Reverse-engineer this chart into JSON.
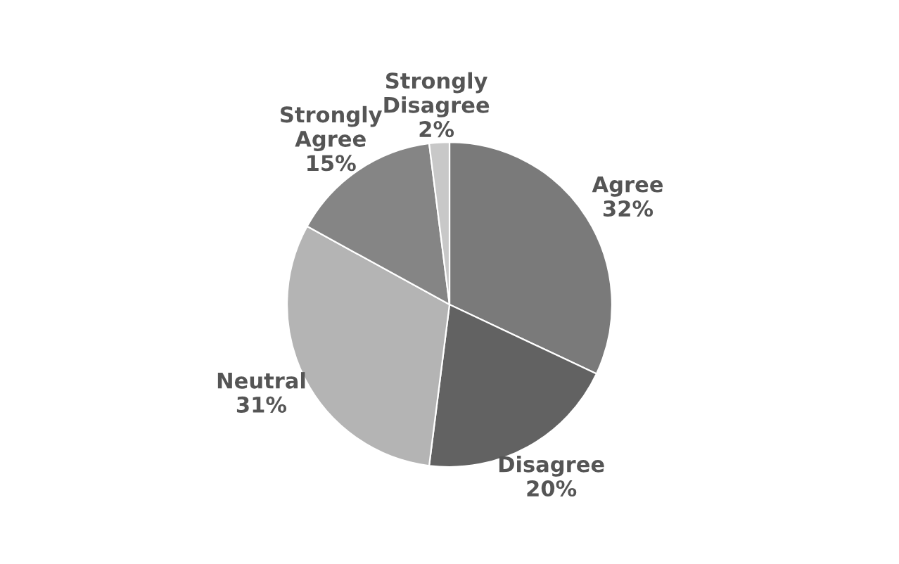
{
  "chart_data": {
    "type": "pie",
    "categories": [
      "Agree",
      "Disagree",
      "Neutral",
      "Strongly Agree",
      "Strongly Disagree"
    ],
    "values": [
      32,
      20,
      31,
      15,
      2
    ],
    "colors": [
      "#7a7a7a",
      "#626262",
      "#b4b4b4",
      "#858585",
      "#c8c8c8"
    ],
    "value_labels": [
      "32%",
      "20%",
      "31%",
      "15%",
      "2%"
    ]
  }
}
